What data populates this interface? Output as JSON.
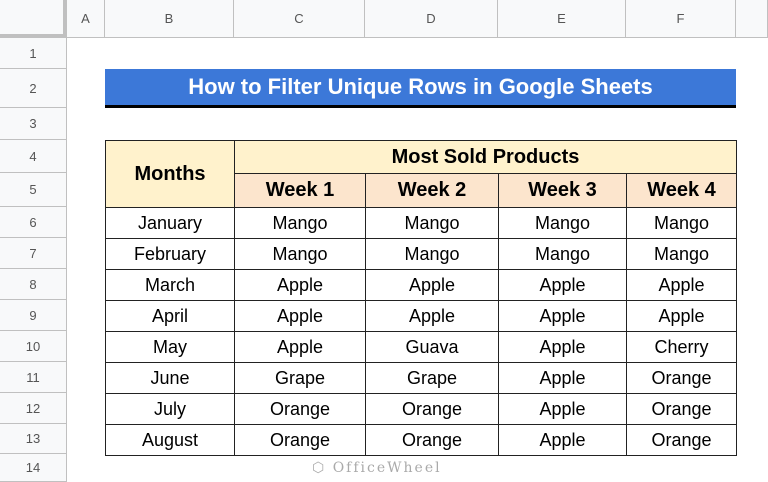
{
  "columns": [
    "A",
    "B",
    "C",
    "D",
    "E",
    "F"
  ],
  "rows": [
    "1",
    "2",
    "3",
    "4",
    "5",
    "6",
    "7",
    "8",
    "9",
    "10",
    "11",
    "12",
    "13",
    "14"
  ],
  "title": "How to Filter Unique Rows in Google Sheets",
  "table": {
    "months_header": "Months",
    "group_header": "Most Sold Products",
    "weeks": [
      "Week 1",
      "Week 2",
      "Week 3",
      "Week 4"
    ],
    "data": [
      [
        "January",
        "Mango",
        "Mango",
        "Mango",
        "Mango"
      ],
      [
        "February",
        "Mango",
        "Mango",
        "Mango",
        "Mango"
      ],
      [
        "March",
        "Apple",
        "Apple",
        "Apple",
        "Apple"
      ],
      [
        "April",
        "Apple",
        "Apple",
        "Apple",
        "Apple"
      ],
      [
        "May",
        "Apple",
        "Guava",
        "Apple",
        "Cherry"
      ],
      [
        "June",
        "Grape",
        "Grape",
        "Apple",
        "Orange"
      ],
      [
        "July",
        "Orange",
        "Orange",
        "Apple",
        "Orange"
      ],
      [
        "August",
        "Orange",
        "Orange",
        "Apple",
        "Orange"
      ]
    ]
  },
  "watermark": "OfficeWheel",
  "colors": {
    "title_bg": "#3c78d8",
    "months_bg": "#fff2cc",
    "week_bg": "#fce5cd"
  }
}
